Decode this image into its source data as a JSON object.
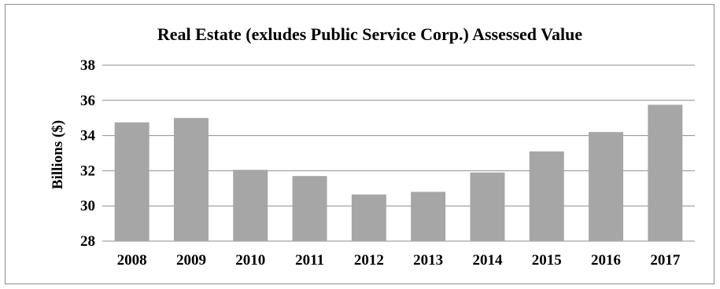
{
  "chart_data": {
    "type": "bar",
    "title": "Real Estate (exludes Public Service Corp.) Assessed Value",
    "xlabel": "",
    "ylabel": "Billions ($)",
    "categories": [
      "2008",
      "2009",
      "2010",
      "2011",
      "2012",
      "2013",
      "2014",
      "2015",
      "2016",
      "2017"
    ],
    "values": [
      34.75,
      35.0,
      32.05,
      31.7,
      30.65,
      30.8,
      31.9,
      33.1,
      34.2,
      35.75
    ],
    "ylim": [
      28,
      38
    ],
    "yticks": [
      "28",
      "30",
      "32",
      "34",
      "36",
      "38"
    ],
    "bar_color": "#a6a6a6",
    "grid": true,
    "legend": "none"
  }
}
